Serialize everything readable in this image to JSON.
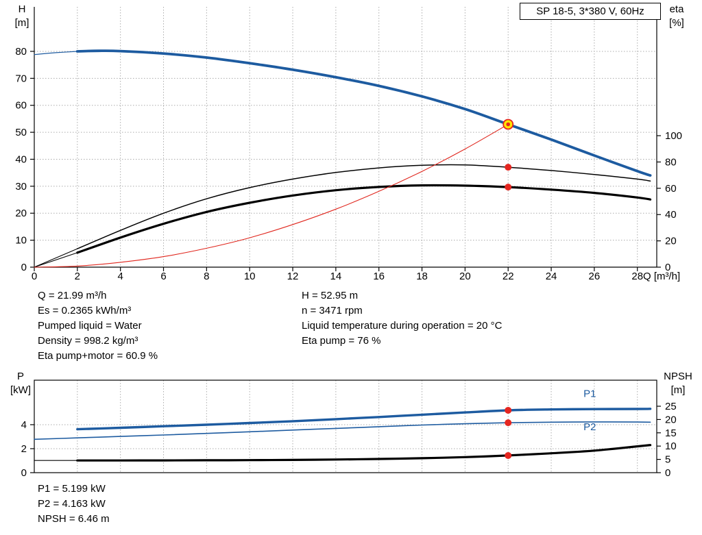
{
  "title_box": "SP 18-5, 3*380 V, 60Hz",
  "axis_corner_labels": {
    "h": {
      "name": "H",
      "unit": "[m]"
    },
    "eta": {
      "name": "eta",
      "unit": "[%]"
    },
    "p": {
      "name": "P",
      "unit": "[kW]"
    },
    "npsh": {
      "name": "NPSH",
      "unit": "[m]"
    }
  },
  "readouts_top": {
    "left": [
      "Q = 21.99 m³/h",
      "Es = 0.2365 kWh/m³",
      "Pumped liquid = Water",
      "Density = 998.2 kg/m³",
      "Eta pump+motor = 60.9 %"
    ],
    "right": [
      "H = 52.95 m",
      "n = 3471 rpm",
      "Liquid temperature during operation = 20 °C",
      "Eta pump = 76 %"
    ]
  },
  "readouts_bottom": [
    "P1 = 5.199 kW",
    "P2 = 4.163 kW",
    "NPSH = 6.46 m"
  ],
  "colors": {
    "curve_blue": "#1d5ba0",
    "curve_black": "#000000",
    "curve_red": "#e0251c",
    "marker_red": "#e52620",
    "marker_yellow": "#ffe600",
    "grid": "#ababab",
    "annotation_blue": "#1d5ba0"
  },
  "chart_data": [
    {
      "id": "hq-chart",
      "type": "line",
      "title": "SP 18-5, 3*380 V, 60Hz",
      "x_axis": {
        "label": "Q [m³/h]",
        "min": 0,
        "max": 28.9,
        "ticks": [
          0,
          2,
          4,
          6,
          8,
          10,
          12,
          14,
          16,
          18,
          20,
          22,
          24,
          26,
          28
        ]
      },
      "left_axis": {
        "label": "H [m]",
        "min": 0,
        "max": 96.5,
        "ticks": [
          0,
          10,
          20,
          30,
          40,
          50,
          60,
          70,
          80
        ],
        "grid_ticks": [
          10,
          20,
          30,
          40,
          50,
          60,
          70,
          80
        ]
      },
      "right_axis": {
        "label": "eta [%]",
        "min": 0,
        "max": 198,
        "ticks": [
          0,
          20,
          40,
          60,
          80,
          100
        ]
      },
      "series": [
        {
          "name": "head-curve-lead",
          "axis": "left",
          "color": "#1d5ba0",
          "width": 1.2,
          "points": [
            [
              0,
              78.8
            ],
            [
              1,
              79.5
            ],
            [
              2,
              80
            ]
          ]
        },
        {
          "name": "head-curve",
          "axis": "left",
          "color": "#1d5ba0",
          "width": 3.8,
          "points": [
            [
              2,
              80
            ],
            [
              3,
              80.2
            ],
            [
              4,
              80.1
            ],
            [
              6,
              79.2
            ],
            [
              8,
              77.7
            ],
            [
              10,
              75.6
            ],
            [
              12,
              73.2
            ],
            [
              14,
              70.4
            ],
            [
              16,
              67.2
            ],
            [
              18,
              63.3
            ],
            [
              20,
              58.6
            ],
            [
              22,
              52.95
            ],
            [
              24,
              47.3
            ],
            [
              26,
              41.4
            ],
            [
              28,
              35.6
            ],
            [
              28.6,
              34
            ]
          ]
        },
        {
          "name": "eta-pump-lead",
          "axis": "right",
          "color": "#000000",
          "width": 1.1,
          "points": [
            [
              0,
              0
            ],
            [
              2,
              14
            ]
          ]
        },
        {
          "name": "eta-pump",
          "axis": "right",
          "color": "#000000",
          "width": 1.5,
          "points": [
            [
              2,
              14
            ],
            [
              4,
              28
            ],
            [
              6,
              41
            ],
            [
              8,
              52
            ],
            [
              10,
              60.5
            ],
            [
              12,
              67
            ],
            [
              14,
              72
            ],
            [
              16,
              75.5
            ],
            [
              18,
              77.5
            ],
            [
              20,
              77.8
            ],
            [
              22,
              76
            ],
            [
              24,
              73.5
            ],
            [
              26,
              70.5
            ],
            [
              28,
              67
            ],
            [
              28.6,
              65.5
            ]
          ]
        },
        {
          "name": "eta-pump-motor-lead",
          "axis": "right",
          "color": "#000000",
          "width": 1.1,
          "points": [
            [
              0,
              0
            ],
            [
              2,
              11
            ]
          ]
        },
        {
          "name": "eta-pump-motor",
          "axis": "right",
          "color": "#000000",
          "width": 3.2,
          "points": [
            [
              2,
              11
            ],
            [
              4,
              22.5
            ],
            [
              6,
              33
            ],
            [
              8,
              42
            ],
            [
              10,
              49
            ],
            [
              12,
              54.5
            ],
            [
              14,
              58.5
            ],
            [
              16,
              61
            ],
            [
              18,
              62.2
            ],
            [
              20,
              62
            ],
            [
              22,
              60.9
            ],
            [
              24,
              59
            ],
            [
              26,
              56.5
            ],
            [
              28,
              53
            ],
            [
              28.6,
              51.5
            ]
          ]
        },
        {
          "name": "system-curve",
          "axis": "left",
          "color": "#e0251c",
          "width": 1.1,
          "points": [
            [
              0,
              0
            ],
            [
              2,
              0.4
            ],
            [
              4,
              1.8
            ],
            [
              6,
              3.9
            ],
            [
              8,
              7
            ],
            [
              10,
              10.9
            ],
            [
              12,
              15.8
            ],
            [
              14,
              21.5
            ],
            [
              16,
              28.1
            ],
            [
              18,
              35.5
            ],
            [
              20,
              43.8
            ],
            [
              22,
              52.95
            ]
          ]
        }
      ],
      "markers": [
        {
          "name": "duty-point-marker",
          "axis": "left",
          "x": 22,
          "y": 52.95,
          "style": "duty"
        },
        {
          "name": "eta-pump-point-marker",
          "axis": "right",
          "x": 22,
          "y": 76,
          "style": "dot"
        },
        {
          "name": "eta-pump-motor-point-marker",
          "axis": "right",
          "x": 22,
          "y": 60.9,
          "style": "dot"
        }
      ],
      "annotations": []
    },
    {
      "id": "power-chart",
      "type": "line",
      "title": "",
      "x_axis": {
        "label": "Q [m³/h]",
        "min": 0,
        "max": 28.9,
        "ticks": [
          0,
          2,
          4,
          6,
          8,
          10,
          12,
          14,
          16,
          18,
          20,
          22,
          24,
          26,
          28
        ]
      },
      "left_axis": {
        "label": "P [kW]",
        "min": 0,
        "max": 7.71,
        "ticks": [
          0,
          2,
          4
        ],
        "grid_ticks": [
          2,
          4
        ]
      },
      "right_axis": {
        "label": "NPSH [m]",
        "min": 0,
        "max": 34.8,
        "ticks": [
          0,
          5,
          10,
          15,
          20,
          25
        ]
      },
      "series": [
        {
          "name": "p1-power",
          "axis": "left",
          "color": "#1d5ba0",
          "width": 3.4,
          "points": [
            [
              2,
              3.62
            ],
            [
              4,
              3.74
            ],
            [
              6,
              3.87
            ],
            [
              8,
              4.0
            ],
            [
              10,
              4.14
            ],
            [
              12,
              4.29
            ],
            [
              14,
              4.46
            ],
            [
              16,
              4.64
            ],
            [
              18,
              4.83
            ],
            [
              20,
              5.02
            ],
            [
              22,
              5.199
            ],
            [
              24,
              5.27
            ],
            [
              26,
              5.3
            ],
            [
              28,
              5.31
            ],
            [
              28.6,
              5.32
            ]
          ]
        },
        {
          "name": "p2-power",
          "axis": "left",
          "color": "#1d5ba0",
          "width": 1.6,
          "points": [
            [
              0,
              2.78
            ],
            [
              2,
              2.9
            ],
            [
              4,
              3.02
            ],
            [
              6,
              3.14
            ],
            [
              8,
              3.27
            ],
            [
              10,
              3.41
            ],
            [
              12,
              3.55
            ],
            [
              14,
              3.69
            ],
            [
              16,
              3.83
            ],
            [
              18,
              3.97
            ],
            [
              20,
              4.08
            ],
            [
              22,
              4.163
            ],
            [
              24,
              4.21
            ],
            [
              26,
              4.23
            ],
            [
              28,
              4.22
            ],
            [
              28.6,
              4.21
            ]
          ]
        },
        {
          "name": "npsh-lead",
          "axis": "right",
          "color": "#000000",
          "width": 1.2,
          "points": [
            [
              0,
              4.6
            ],
            [
              2,
              4.6
            ]
          ]
        },
        {
          "name": "npsh",
          "axis": "right",
          "color": "#000000",
          "width": 3.2,
          "points": [
            [
              2,
              4.6
            ],
            [
              4,
              4.6
            ],
            [
              6,
              4.62
            ],
            [
              8,
              4.66
            ],
            [
              10,
              4.72
            ],
            [
              12,
              4.8
            ],
            [
              14,
              4.95
            ],
            [
              16,
              5.15
            ],
            [
              18,
              5.45
            ],
            [
              20,
              5.85
            ],
            [
              22,
              6.46
            ],
            [
              24,
              7.3
            ],
            [
              26,
              8.3
            ],
            [
              28,
              9.9
            ],
            [
              28.6,
              10.4
            ]
          ]
        }
      ],
      "markers": [
        {
          "name": "p1-point-marker",
          "axis": "left",
          "x": 22,
          "y": 5.199,
          "style": "dot"
        },
        {
          "name": "p2-point-marker",
          "axis": "left",
          "x": 22,
          "y": 4.163,
          "style": "dot"
        },
        {
          "name": "npsh-point-marker",
          "axis": "right",
          "x": 22,
          "y": 6.46,
          "style": "dot"
        }
      ],
      "annotations": [
        {
          "text": "P1",
          "axis": "left",
          "x": 25.5,
          "y": 6.3,
          "color": "#1d5ba0"
        },
        {
          "text": "P2",
          "axis": "left",
          "x": 25.5,
          "y": 3.55,
          "color": "#1d5ba0"
        }
      ]
    }
  ]
}
